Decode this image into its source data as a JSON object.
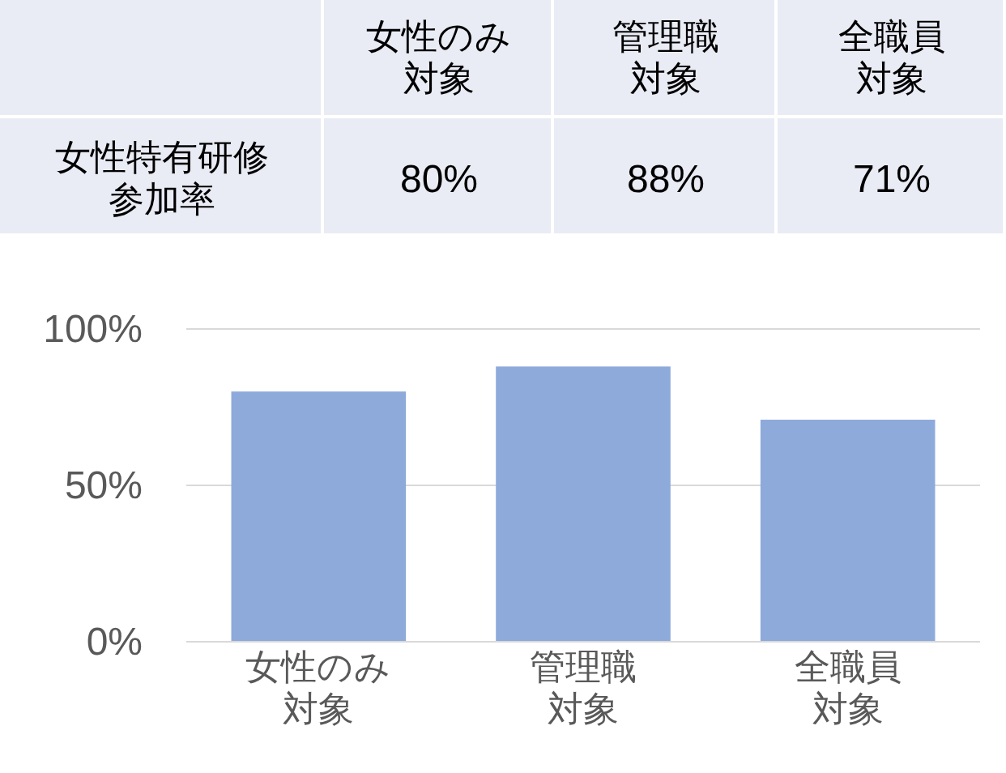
{
  "chart_data": {
    "type": "bar",
    "categories": [
      "女性のみ対象",
      "管理職対象",
      "全職員対象"
    ],
    "series": [
      {
        "name": "女性特有研修参加率",
        "color": "#8eaadb",
        "values": [
          80,
          88,
          71
        ],
        "value_labels": [
          "80%",
          "88%",
          "71%"
        ]
      }
    ],
    "ylim": [
      0,
      100
    ],
    "yticks": [
      {
        "value": 0,
        "label": "0%"
      },
      {
        "value": 50,
        "label": "50%"
      },
      {
        "value": 100,
        "label": "100%"
      }
    ],
    "grid": "y",
    "legend": false
  }
}
